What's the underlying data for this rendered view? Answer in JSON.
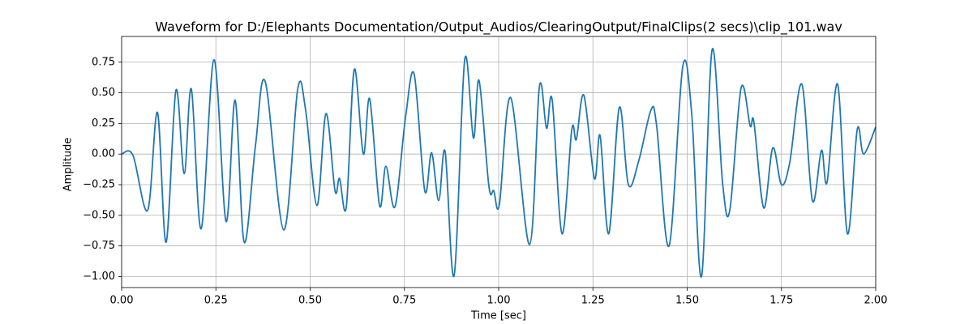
{
  "chart_data": {
    "type": "line",
    "title": "Waveform for D:/Elephants Documentation/Output_Audios/ClearingOutput/FinalClips(2 secs)\\clip_101.wav",
    "x_label": "Time [sec]",
    "y_label": "Amplitude",
    "x": [
      0,
      0.03,
      0.069,
      0.095,
      0.118,
      0.144,
      0.166,
      0.185,
      0.211,
      0.245,
      0.277,
      0.301,
      0.325,
      0.355,
      0.381,
      0.43,
      0.467,
      0.488,
      0.518,
      0.542,
      0.566,
      0.578,
      0.596,
      0.617,
      0.641,
      0.658,
      0.684,
      0.701,
      0.725,
      0.753,
      0.776,
      0.804,
      0.822,
      0.841,
      0.858,
      0.882,
      0.91,
      0.933,
      0.948,
      0.974,
      0.987,
      1.002,
      1.032,
      1.082,
      1.108,
      1.127,
      1.142,
      1.168,
      1.194,
      1.206,
      1.226,
      1.254,
      1.269,
      1.292,
      1.32,
      1.344,
      1.372,
      1.404,
      1.419,
      1.452,
      1.488,
      1.512,
      1.538,
      1.566,
      1.594,
      1.613,
      1.643,
      1.667,
      1.677,
      1.703,
      1.727,
      1.75,
      1.772,
      1.804,
      1.832,
      1.856,
      1.871,
      1.899,
      1.925,
      1.951,
      1.968,
      2.0
    ],
    "series": [
      {
        "name": "Amplitude",
        "color": "#1f77b4",
        "values": [
          0,
          -0.01,
          -0.46,
          0.34,
          -0.72,
          0.52,
          -0.16,
          0.53,
          -0.61,
          0.77,
          -0.55,
          0.44,
          -0.72,
          0.07,
          0.59,
          -0.62,
          0.53,
          0.36,
          -0.42,
          0.33,
          -0.3,
          -0.2,
          -0.43,
          0.69,
          0.0,
          0.45,
          -0.42,
          -0.1,
          -0.43,
          0.3,
          0.65,
          -0.3,
          0.01,
          -0.38,
          0.02,
          -0.99,
          0.77,
          0.13,
          0.6,
          -0.26,
          -0.3,
          -0.41,
          0.46,
          -0.74,
          0.55,
          0.21,
          0.44,
          -0.65,
          0.2,
          0.12,
          0.48,
          -0.2,
          0.15,
          -0.65,
          0.38,
          -0.25,
          -0.05,
          0.36,
          0.23,
          -0.75,
          0.71,
          0.33,
          -1.0,
          0.85,
          -0.24,
          -0.46,
          0.54,
          0.23,
          0.26,
          -0.44,
          0.05,
          -0.25,
          -0.07,
          0.57,
          -0.38,
          0.03,
          -0.23,
          0.57,
          -0.65,
          0.2,
          0.0,
          0.22
        ]
      }
    ],
    "xlim": [
      0,
      2
    ],
    "ylim": [
      -1.09,
      0.96
    ],
    "xticks": [
      {
        "value": 0,
        "label": "0.00"
      },
      {
        "value": 0.25,
        "label": "0.25"
      },
      {
        "value": 0.5,
        "label": "0.50"
      },
      {
        "value": 0.75,
        "label": "0.75"
      },
      {
        "value": 1,
        "label": "1.00"
      },
      {
        "value": 1.25,
        "label": "1.25"
      },
      {
        "value": 1.5,
        "label": "1.50"
      },
      {
        "value": 1.75,
        "label": "1.75"
      },
      {
        "value": 2,
        "label": "2.00"
      }
    ],
    "yticks": [
      {
        "value": -1,
        "label": "−1.00"
      },
      {
        "value": -0.75,
        "label": "−0.75"
      },
      {
        "value": -0.5,
        "label": "−0.50"
      },
      {
        "value": -0.25,
        "label": "−0.25"
      },
      {
        "value": 0,
        "label": "0.00"
      },
      {
        "value": 0.25,
        "label": "0.25"
      },
      {
        "value": 0.5,
        "label": "0.50"
      },
      {
        "value": 0.75,
        "label": "0.75"
      }
    ],
    "grid": true
  }
}
